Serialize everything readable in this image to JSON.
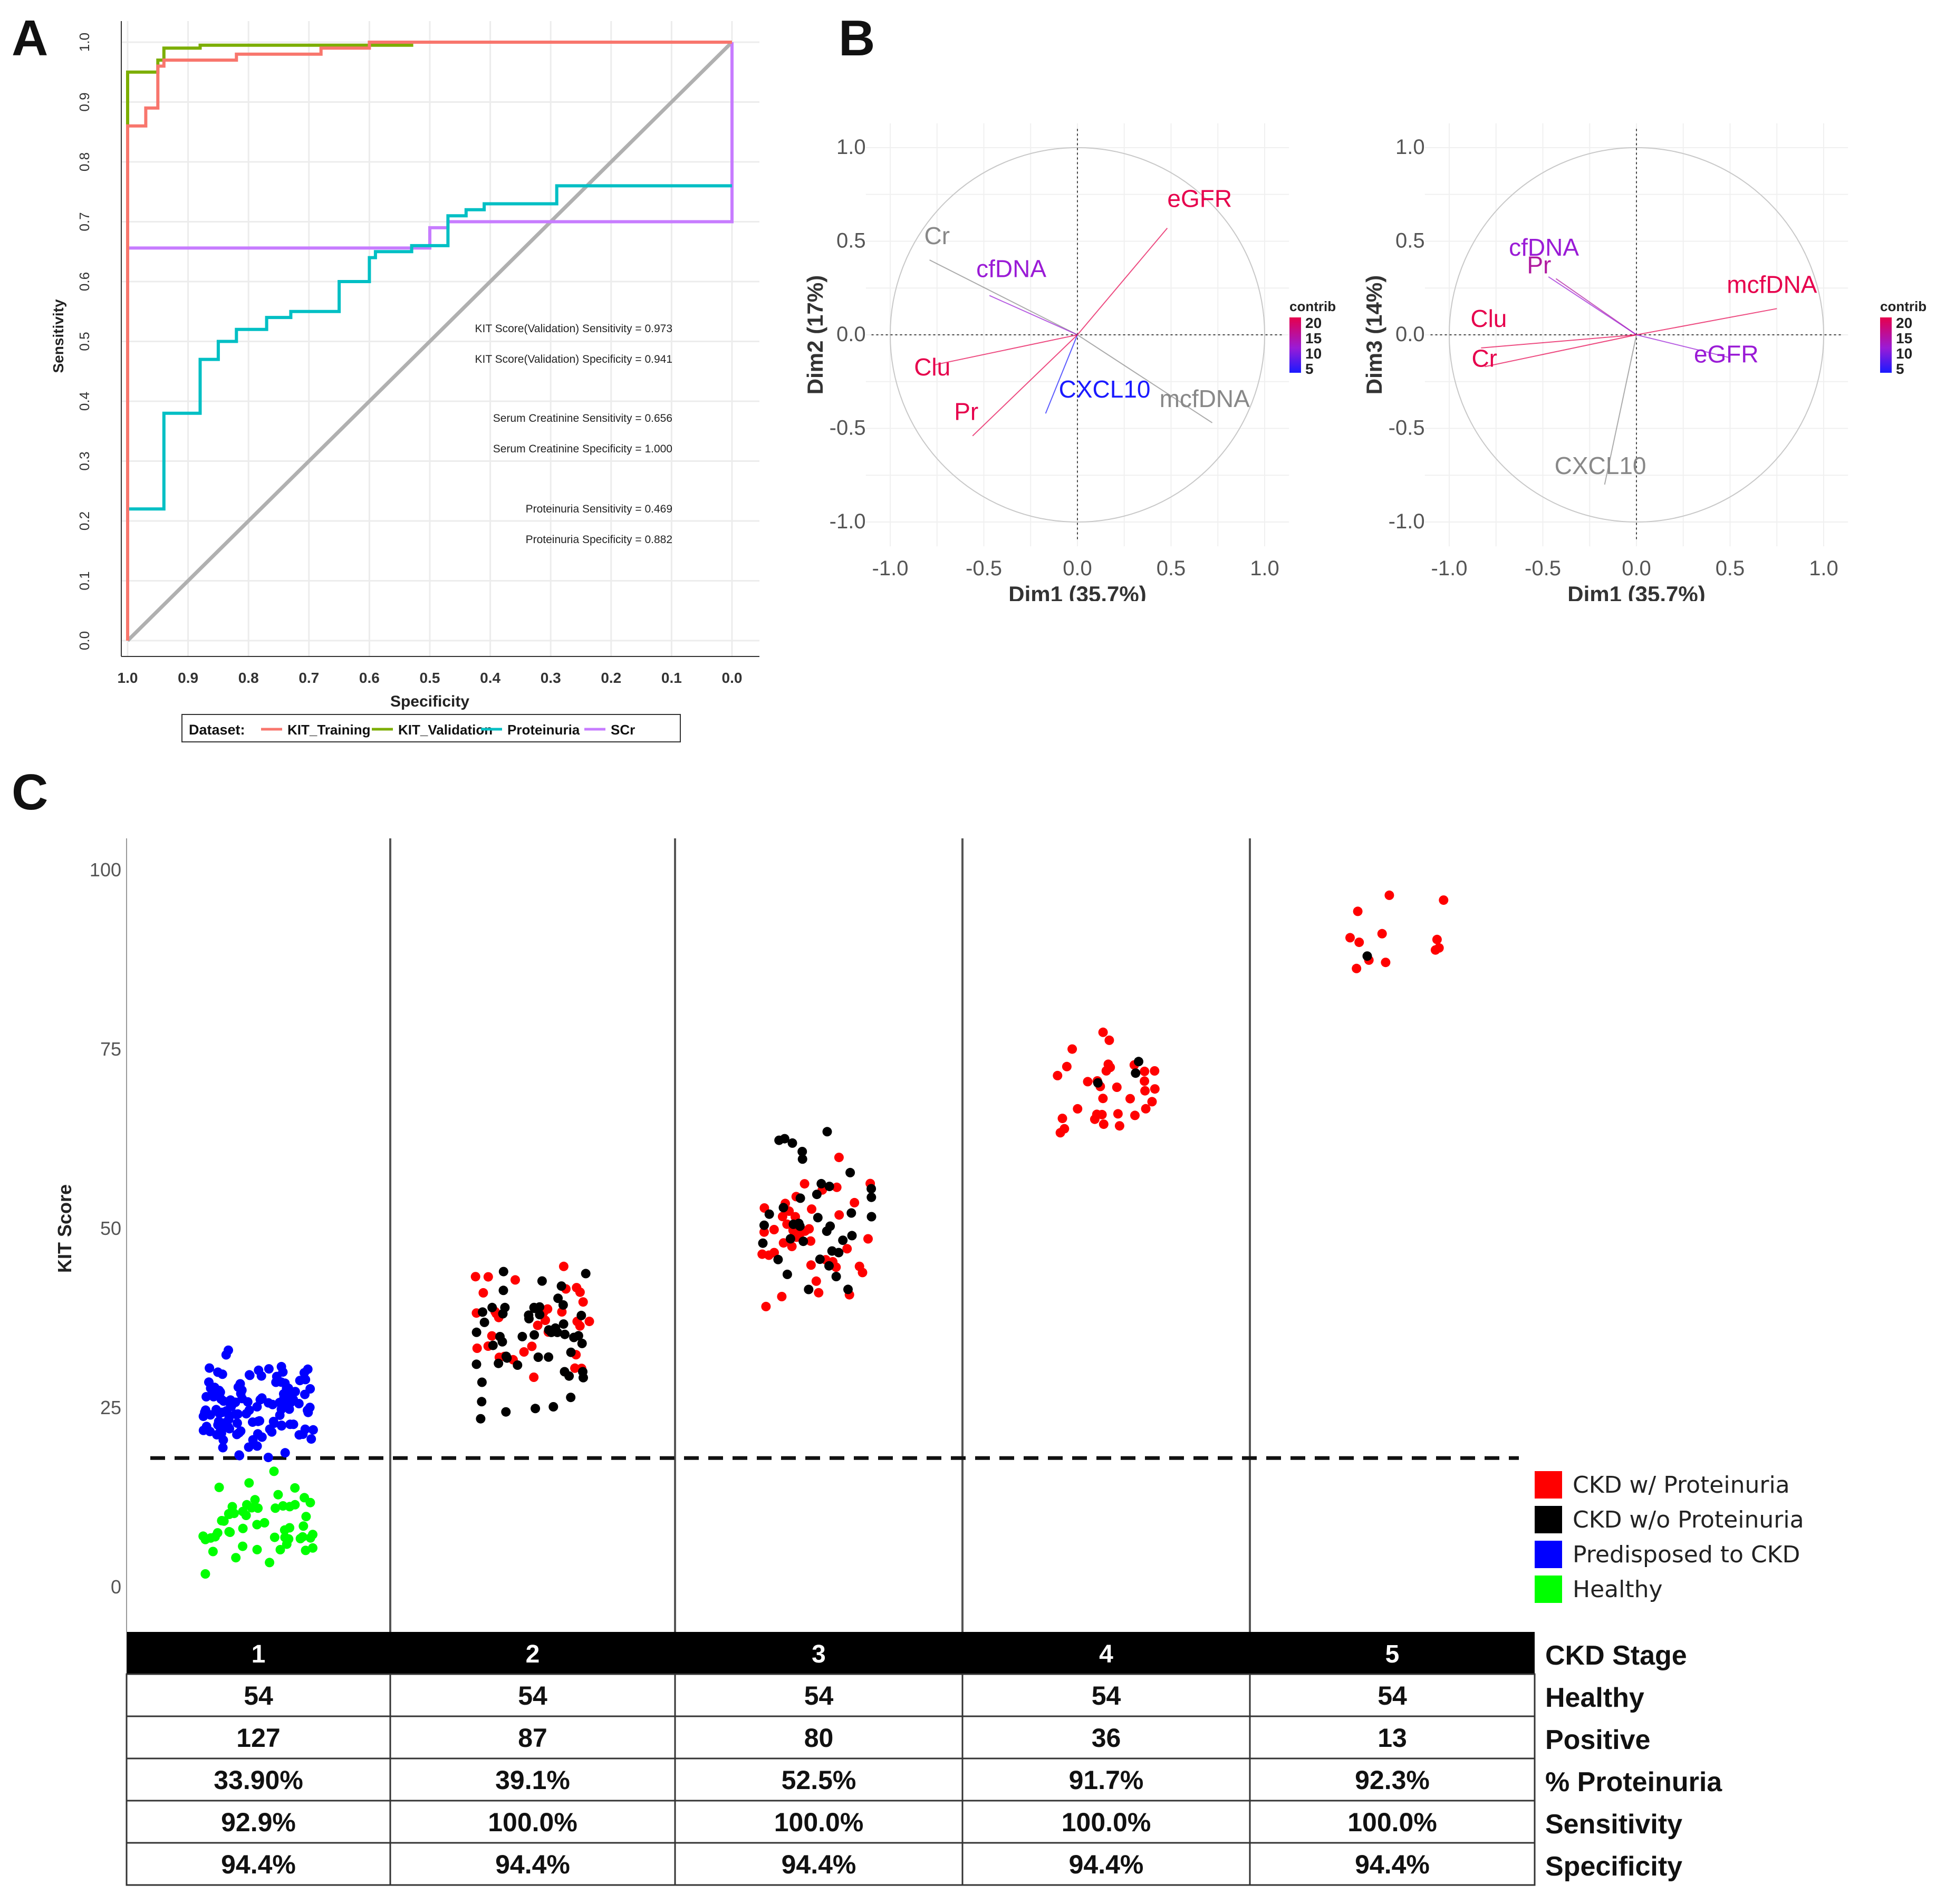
{
  "panels": {
    "a": "A",
    "b": "B",
    "c": "C"
  },
  "colors": {
    "kit_training": "#f8766d",
    "kit_validation": "#7cae00",
    "proteinuria": "#00bfc4",
    "scr": "#c77cff",
    "chk_prot": "#ff0000",
    "chk_noprot": "#000000",
    "predisposed": "#0000ff",
    "healthy": "#00ff00",
    "contrib_high": "#e6004c",
    "contrib_mid": "#9a1bd6",
    "contrib_low": "#1a1aff",
    "grey": "#888888"
  },
  "chart_data": [
    {
      "type": "line",
      "id": "roc",
      "xlabel": "Specificity",
      "ylabel": "Sensitivity",
      "xlim": [
        1.0,
        0.0
      ],
      "ylim": [
        0.0,
        1.0
      ],
      "xticks": [
        "1.0",
        "0.9",
        "0.8",
        "0.7",
        "0.6",
        "0.5",
        "0.4",
        "0.3",
        "0.2",
        "0.1",
        "0.0"
      ],
      "yticks": [
        "0.0",
        "0.1",
        "0.2",
        "0.3",
        "0.4",
        "0.5",
        "0.6",
        "0.7",
        "0.8",
        "0.9",
        "1.0"
      ],
      "legend_title": "Dataset:",
      "series": [
        {
          "name": "KIT_Training",
          "color": "#f8766d",
          "points": [
            [
              1,
              0
            ],
            [
              1,
              0.86
            ],
            [
              0.97,
              0.86
            ],
            [
              0.97,
              0.89
            ],
            [
              0.95,
              0.89
            ],
            [
              0.95,
              0.96
            ],
            [
              0.94,
              0.96
            ],
            [
              0.94,
              0.97
            ],
            [
              0.82,
              0.97
            ],
            [
              0.82,
              0.98
            ],
            [
              0.68,
              0.98
            ],
            [
              0.68,
              0.99
            ],
            [
              0.6,
              0.99
            ],
            [
              0.6,
              1.0
            ],
            [
              0,
              1.0
            ]
          ]
        },
        {
          "name": "KIT_Validation",
          "color": "#7cae00",
          "points": [
            [
              1,
              0
            ],
            [
              1,
              0.95
            ],
            [
              0.95,
              0.95
            ],
            [
              0.95,
              0.97
            ],
            [
              0.94,
              0.97
            ],
            [
              0.94,
              0.99
            ],
            [
              0.88,
              0.99
            ],
            [
              0.88,
              0.995
            ],
            [
              0.53,
              0.995
            ],
            [
              0.53,
              1.0
            ],
            [
              0,
              1.0
            ]
          ]
        },
        {
          "name": "Proteinuria",
          "color": "#00bfc4",
          "points": [
            [
              1,
              0
            ],
            [
              1,
              0.22
            ],
            [
              0.94,
              0.22
            ],
            [
              0.94,
              0.38
            ],
            [
              0.88,
              0.38
            ],
            [
              0.88,
              0.47
            ],
            [
              0.85,
              0.47
            ],
            [
              0.85,
              0.5
            ],
            [
              0.82,
              0.5
            ],
            [
              0.82,
              0.52
            ],
            [
              0.77,
              0.52
            ],
            [
              0.77,
              0.54
            ],
            [
              0.73,
              0.54
            ],
            [
              0.73,
              0.55
            ],
            [
              0.65,
              0.55
            ],
            [
              0.65,
              0.6
            ],
            [
              0.6,
              0.6
            ],
            [
              0.6,
              0.64
            ],
            [
              0.59,
              0.64
            ],
            [
              0.59,
              0.65
            ],
            [
              0.53,
              0.65
            ],
            [
              0.53,
              0.66
            ],
            [
              0.47,
              0.66
            ],
            [
              0.47,
              0.71
            ],
            [
              0.44,
              0.71
            ],
            [
              0.44,
              0.72
            ],
            [
              0.41,
              0.72
            ],
            [
              0.41,
              0.73
            ],
            [
              0.29,
              0.73
            ],
            [
              0.29,
              0.76
            ],
            [
              0,
              0.76
            ]
          ]
        },
        {
          "name": "SCr",
          "color": "#c77cff",
          "points": [
            [
              1,
              0
            ],
            [
              1,
              0.656
            ],
            [
              0.5,
              0.656
            ],
            [
              0.5,
              0.69
            ],
            [
              0.47,
              0.69
            ],
            [
              0.47,
              0.7
            ],
            [
              0.0,
              0.7
            ],
            [
              0.0,
              1.0
            ]
          ]
        }
      ],
      "annotations": [
        "KIT Score(Validation) Sensitivity = 0.973",
        "KIT Score(Validation) Specificity = 0.941",
        "Serum Creatinine Sensitivity = 0.656",
        "Serum Creatinine Specificity = 1.000",
        "Proteinuria Sensitivity = 0.469",
        "Proteinuria Specificity = 0.882"
      ]
    },
    {
      "type": "scatter",
      "id": "pca1",
      "xlabel": "Dim1 (35.7%)",
      "ylabel": "Dim2 (17%)",
      "xlim": [
        -1.0,
        1.0
      ],
      "ylim": [
        -1.0,
        1.0
      ],
      "xticks": [
        "-1.0",
        "-0.5",
        "0.0",
        "0.5",
        "1.0"
      ],
      "yticks": [
        "1.0",
        "0.5",
        "0.0",
        "-0.5",
        "-1.0"
      ],
      "legend_title": "contrib",
      "legend_ticks": [
        "20",
        "15",
        "10",
        "5"
      ],
      "vectors": [
        {
          "label": "Cr",
          "x": -0.79,
          "y": 0.4,
          "color": "#888888"
        },
        {
          "label": "cfDNA",
          "x": -0.47,
          "y": 0.21,
          "color": "#9a1bd6"
        },
        {
          "label": "Clu",
          "x": -0.76,
          "y": -0.16,
          "color": "#e6004c"
        },
        {
          "label": "eGFR",
          "x": 0.48,
          "y": 0.57,
          "color": "#e6004c"
        },
        {
          "label": "CXCL10",
          "x": -0.17,
          "y": -0.42,
          "color": "#1a1aff"
        },
        {
          "label": "Pr",
          "x": -0.56,
          "y": -0.54,
          "color": "#e6004c"
        },
        {
          "label": "mcfDNA",
          "x": 0.72,
          "y": -0.47,
          "color": "#888888"
        }
      ]
    },
    {
      "type": "scatter",
      "id": "pca2",
      "xlabel": "Dim1 (35.7%)",
      "ylabel": "Dim3 (14%)",
      "xlim": [
        -1.0,
        1.0
      ],
      "ylim": [
        -1.0,
        1.0
      ],
      "xticks": [
        "-1.0",
        "-0.5",
        "0.0",
        "0.5",
        "1.0"
      ],
      "yticks": [
        "1.0",
        "0.5",
        "0.0",
        "-0.5",
        "-1.0"
      ],
      "legend_title": "contrib",
      "legend_ticks": [
        "20",
        "15",
        "10",
        "5"
      ],
      "vectors": [
        {
          "label": "Pr",
          "x": -0.43,
          "y": 0.3,
          "color": "#b01a9f"
        },
        {
          "label": "cfDNA",
          "x": -0.47,
          "y": 0.31,
          "color": "#9a1bd6"
        },
        {
          "label": "mcfDNA",
          "x": 0.75,
          "y": 0.14,
          "color": "#e6004c"
        },
        {
          "label": "Clu",
          "x": -0.83,
          "y": -0.07,
          "color": "#e6004c"
        },
        {
          "label": "Cr",
          "x": -0.81,
          "y": -0.17,
          "color": "#e6004c"
        },
        {
          "label": "eGFR",
          "x": 0.49,
          "y": -0.12,
          "color": "#9a1bd6"
        },
        {
          "label": "CXCL10",
          "x": -0.17,
          "y": -0.8,
          "color": "#888888"
        }
      ]
    },
    {
      "type": "scatter",
      "id": "kit",
      "ylabel": "KIT Score",
      "ylim": [
        0,
        100
      ],
      "yticks": [
        "0",
        "25",
        "50",
        "75",
        "100"
      ],
      "threshold": 18,
      "categories": [
        "1",
        "2",
        "3",
        "4",
        "5"
      ],
      "legend": [
        {
          "label": "CKD w/ Proteinuria",
          "color": "#ff0000"
        },
        {
          "label": "CKD w/o Proteinuria",
          "color": "#000000"
        },
        {
          "label": "Predisposed to CKD",
          "color": "#0000ff"
        },
        {
          "label": "Healthy",
          "color": "#00ff00"
        }
      ]
    }
  ],
  "table": {
    "header_label": "CKD Stage",
    "stages": [
      "1",
      "2",
      "3",
      "4",
      "5"
    ],
    "rows": [
      {
        "label": "Healthy",
        "values": [
          "54",
          "54",
          "54",
          "54",
          "54"
        ]
      },
      {
        "label": "Positive",
        "values": [
          "127",
          "87",
          "80",
          "36",
          "13"
        ]
      },
      {
        "label": "% Proteinuria",
        "values": [
          "33.90%",
          "39.1%",
          "52.5%",
          "91.7%",
          "92.3%"
        ]
      },
      {
        "label": "Sensitivity",
        "values": [
          "92.9%",
          "100.0%",
          "100.0%",
          "100.0%",
          "100.0%"
        ]
      },
      {
        "label": "Specificity",
        "values": [
          "94.4%",
          "94.4%",
          "94.4%",
          "94.4%",
          "94.4%"
        ]
      }
    ]
  }
}
